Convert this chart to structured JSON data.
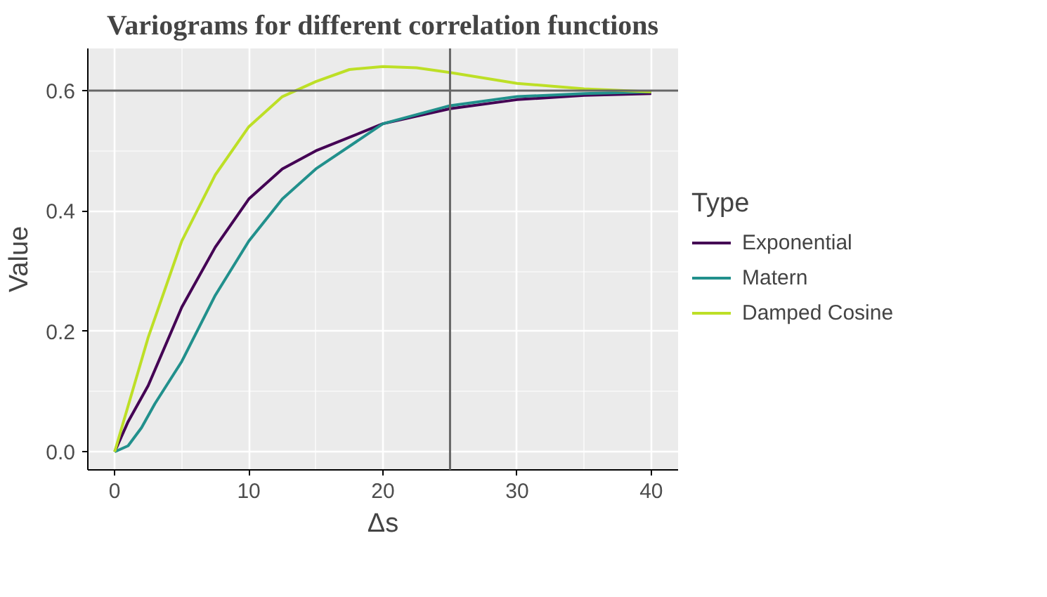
{
  "chart_data": {
    "type": "line",
    "title": "Variograms for different correlation functions",
    "xlabel": "Δs",
    "ylabel": "Value",
    "legend_title": "Type",
    "xlim": [
      -2,
      42
    ],
    "ylim": [
      -0.03,
      0.67
    ],
    "xticks": [
      0,
      10,
      20,
      30,
      40
    ],
    "yticks": [
      {
        "value": 0,
        "label": "0.0"
      },
      0.2,
      0.4,
      0.6
    ],
    "grid": true,
    "legend": "right",
    "series": [
      {
        "name": "Exponential",
        "color": "#440154",
        "x": [
          0,
          1,
          2.5,
          5,
          7.5,
          10,
          12.5,
          15,
          20,
          25,
          30,
          35,
          40
        ],
        "values": [
          0,
          0.05,
          0.11,
          0.24,
          0.34,
          0.42,
          0.47,
          0.5,
          0.545,
          0.57,
          0.585,
          0.592,
          0.595
        ]
      },
      {
        "name": "Matern",
        "color": "#21908c",
        "x": [
          0,
          1,
          2,
          3,
          5,
          7.5,
          10,
          12.5,
          15,
          20,
          25,
          30,
          35,
          40
        ],
        "values": [
          0,
          0.01,
          0.04,
          0.08,
          0.15,
          0.26,
          0.35,
          0.42,
          0.47,
          0.545,
          0.575,
          0.59,
          0.595,
          0.598
        ]
      },
      {
        "name": "Damped Cosine",
        "color": "#bddf26",
        "x": [
          0,
          2.5,
          5,
          7.5,
          10,
          12.5,
          15,
          17.5,
          20,
          22.5,
          25,
          30,
          35,
          40
        ],
        "values": [
          0,
          0.19,
          0.35,
          0.46,
          0.54,
          0.59,
          0.615,
          0.635,
          0.64,
          0.638,
          0.63,
          0.612,
          0.603,
          0.598
        ]
      }
    ],
    "ref_lines": [
      {
        "axis": "x",
        "value": 25,
        "color": "#666666"
      },
      {
        "axis": "y",
        "value": 0.6,
        "color": "#666666"
      }
    ]
  }
}
